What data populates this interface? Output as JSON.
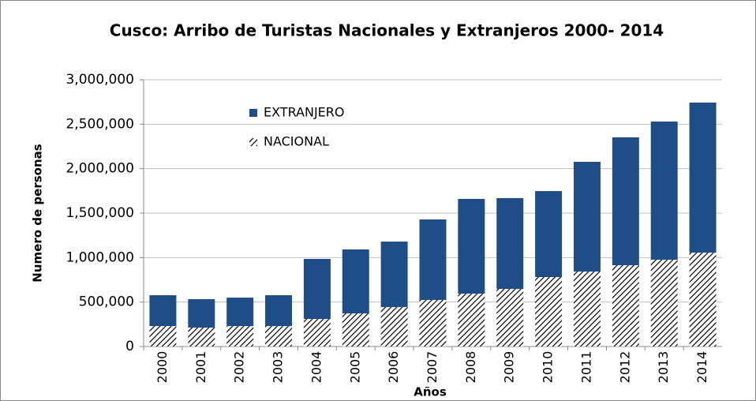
{
  "chart_data": {
    "type": "stacked_bar",
    "title": "Cusco: Arribo de Turistas Nacionales y Extranjeros 2000- 2014",
    "x_label": "Años",
    "y_label": "Numero de personas",
    "categories": [
      "2000",
      "2001",
      "2002",
      "2003",
      "2004",
      "2005",
      "2006",
      "2007",
      "2008",
      "2009",
      "2010",
      "2011",
      "2012",
      "2013",
      "2014"
    ],
    "series": [
      {
        "name": "NACIONAL",
        "color": "#000000",
        "pattern": "hatch",
        "values": [
          230000,
          213000,
          230000,
          230000,
          310000,
          373000,
          444000,
          524000,
          595000,
          648000,
          781000,
          843000,
          914000,
          976000,
          1056000
        ]
      },
      {
        "name": "EXTRANJERO",
        "color": "#1f4e87",
        "values": [
          347000,
          320000,
          320000,
          347000,
          675000,
          719000,
          736000,
          905000,
          1065000,
          1021000,
          967000,
          1234000,
          1438000,
          1554000,
          1687000
        ]
      }
    ],
    "ylim": [
      0,
      3000000
    ],
    "yticks": [
      0,
      {
        "value": 500000,
        "label": "500,000"
      },
      {
        "value": 1000000,
        "label": "1,000,000"
      },
      {
        "value": 1500000,
        "label": "1,500,000"
      },
      {
        "value": 2000000,
        "label": "2,000,000"
      },
      {
        "value": 2500000,
        "label": "2,500,000"
      },
      {
        "value": 3000000,
        "label": "3,000,000"
      }
    ],
    "grid": true
  }
}
